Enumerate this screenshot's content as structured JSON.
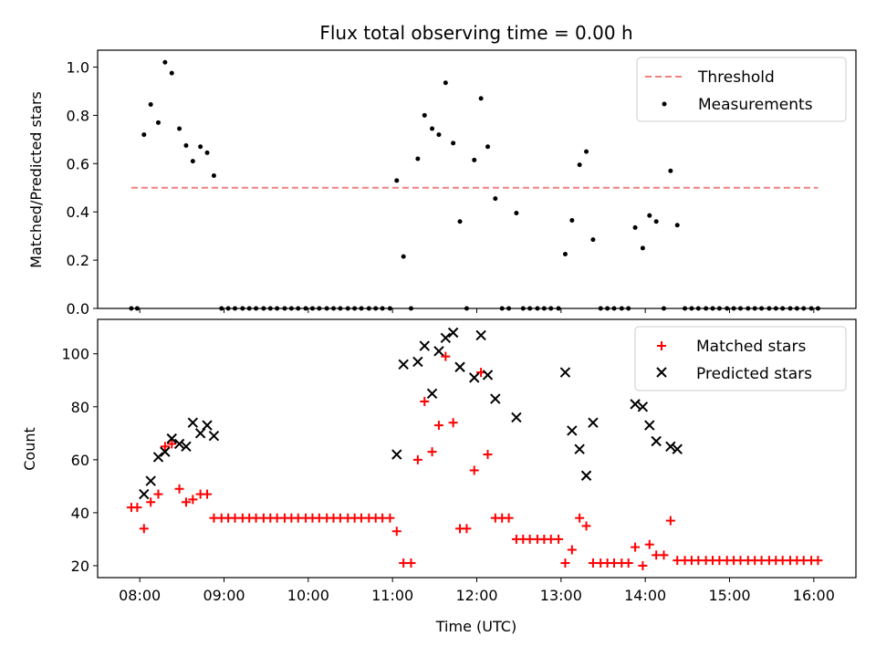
{
  "title": "Flux total observing time = 0.00 h",
  "xlabel": "Time (UTC)",
  "x_ticks": [
    "08:00",
    "09:00",
    "10:00",
    "11:00",
    "12:00",
    "13:00",
    "14:00",
    "15:00",
    "16:00"
  ],
  "colors": {
    "threshold": "#f08080",
    "measurements": "#000000",
    "matched": "#ff0000",
    "predicted": "#000000"
  },
  "chart_data": [
    {
      "type": "scatter",
      "ylabel": "Matched/Predicted stars",
      "ylim": [
        0,
        1.07
      ],
      "xlim_hours": [
        7.5,
        16.5
      ],
      "y_ticks": [
        "0.0",
        "0.2",
        "0.4",
        "0.6",
        "0.8",
        "1.0"
      ],
      "y_tick_values": [
        0,
        0.2,
        0.4,
        0.6,
        0.8,
        1.0
      ],
      "legend": {
        "position": "top-right",
        "entries": [
          "Threshold",
          "Measurements"
        ]
      },
      "threshold": {
        "name": "Threshold",
        "x": [
          7.9,
          16.05
        ],
        "y": [
          0.5,
          0.5
        ]
      },
      "series": [
        {
          "name": "Measurements",
          "x": [
            7.9,
            7.97,
            8.05,
            8.13,
            8.22,
            8.3,
            8.38,
            8.47,
            8.55,
            8.63,
            8.72,
            8.8,
            8.88,
            8.97,
            9.05,
            9.13,
            9.22,
            9.3,
            9.38,
            9.47,
            9.55,
            9.63,
            9.72,
            9.8,
            9.88,
            9.97,
            10.05,
            10.13,
            10.22,
            10.3,
            10.38,
            10.47,
            10.55,
            10.63,
            10.72,
            10.8,
            10.88,
            10.97,
            11.05,
            11.13,
            11.22,
            11.3,
            11.38,
            11.47,
            11.55,
            11.63,
            11.72,
            11.8,
            11.88,
            11.97,
            12.05,
            12.13,
            12.22,
            12.3,
            12.38,
            12.47,
            12.55,
            12.63,
            12.72,
            12.8,
            12.88,
            12.97,
            13.05,
            13.13,
            13.22,
            13.3,
            13.38,
            13.47,
            13.55,
            13.63,
            13.72,
            13.8,
            13.88,
            13.97,
            14.05,
            14.13,
            14.22,
            14.3,
            14.38,
            14.47,
            14.55,
            14.63,
            14.72,
            14.8,
            14.88,
            14.97,
            15.05,
            15.13,
            15.22,
            15.3,
            15.38,
            15.47,
            15.55,
            15.63,
            15.72,
            15.8,
            15.88,
            15.97,
            16.05
          ],
          "y": [
            0.0,
            0.0,
            0.72,
            0.845,
            0.77,
            1.02,
            0.975,
            0.745,
            0.675,
            0.61,
            0.67,
            0.645,
            0.55,
            0.0,
            0.0,
            0.0,
            0.0,
            0.0,
            0.0,
            0.0,
            0.0,
            0.0,
            0.0,
            0.0,
            0.0,
            0.0,
            0.0,
            0.0,
            0.0,
            0.0,
            0.0,
            0.0,
            0.0,
            0.0,
            0.0,
            0.0,
            0.0,
            0.0,
            0.53,
            0.215,
            0.0,
            0.62,
            0.8,
            0.745,
            0.72,
            0.935,
            0.685,
            0.36,
            0.0,
            0.615,
            0.87,
            0.67,
            0.455,
            0.0,
            0.0,
            0.395,
            0.0,
            0.0,
            0.0,
            0.0,
            0.0,
            0.0,
            0.225,
            0.365,
            0.595,
            0.65,
            0.285,
            0.0,
            0.0,
            0.0,
            0.0,
            0.0,
            0.335,
            0.25,
            0.385,
            0.36,
            0.0,
            0.57,
            0.345,
            0.0,
            0.0,
            0.0,
            0.0,
            0.0,
            0.0,
            0.0,
            0.0,
            0.0,
            0.0,
            0.0,
            0.0,
            0.0,
            0.0,
            0.0,
            0.0,
            0.0,
            0.0,
            0.0,
            0.0
          ]
        }
      ]
    },
    {
      "type": "scatter",
      "ylabel": "Count",
      "ylim": [
        15.5,
        113
      ],
      "xlim_hours": [
        7.5,
        16.5
      ],
      "y_ticks": [
        "20",
        "40",
        "60",
        "80",
        "100"
      ],
      "y_tick_values": [
        20,
        40,
        60,
        80,
        100
      ],
      "legend": {
        "position": "top-right",
        "entries": [
          "Matched stars",
          "Predicted stars"
        ]
      },
      "series": [
        {
          "name": "Matched stars",
          "marker": "plus",
          "x": [
            7.9,
            7.97,
            8.05,
            8.13,
            8.22,
            8.3,
            8.38,
            8.47,
            8.55,
            8.63,
            8.72,
            8.8,
            8.88,
            8.97,
            9.05,
            9.13,
            9.22,
            9.3,
            9.38,
            9.47,
            9.55,
            9.63,
            9.72,
            9.8,
            9.88,
            9.97,
            10.05,
            10.13,
            10.22,
            10.3,
            10.38,
            10.47,
            10.55,
            10.63,
            10.72,
            10.8,
            10.88,
            10.97,
            11.05,
            11.13,
            11.22,
            11.3,
            11.38,
            11.47,
            11.55,
            11.63,
            11.72,
            11.8,
            11.88,
            11.97,
            12.05,
            12.13,
            12.22,
            12.3,
            12.38,
            12.47,
            12.55,
            12.63,
            12.72,
            12.8,
            12.88,
            12.97,
            13.05,
            13.13,
            13.22,
            13.3,
            13.38,
            13.47,
            13.55,
            13.63,
            13.72,
            13.8,
            13.88,
            13.97,
            14.05,
            14.13,
            14.22,
            14.3,
            14.38,
            14.47,
            14.55,
            14.63,
            14.72,
            14.8,
            14.88,
            14.97,
            15.05,
            15.13,
            15.22,
            15.3,
            15.38,
            15.47,
            15.55,
            15.63,
            15.72,
            15.8,
            15.88,
            15.97,
            16.05
          ],
          "y": [
            42,
            42,
            34,
            44,
            47,
            65,
            66,
            49,
            44,
            45,
            47,
            47,
            38,
            38,
            38,
            38,
            38,
            38,
            38,
            38,
            38,
            38,
            38,
            38,
            38,
            38,
            38,
            38,
            38,
            38,
            38,
            38,
            38,
            38,
            38,
            38,
            38,
            38,
            33,
            21,
            21,
            60,
            82,
            63,
            73,
            99,
            74,
            34,
            34,
            56,
            93,
            62,
            38,
            38,
            38,
            30,
            30,
            30,
            30,
            30,
            30,
            30,
            21,
            26,
            38,
            35,
            21,
            21,
            21,
            21,
            21,
            21,
            27,
            20,
            28,
            24,
            24,
            37,
            22,
            22,
            22,
            22,
            22,
            22,
            22,
            22,
            22,
            22,
            22,
            22,
            22,
            22,
            22,
            22,
            22,
            22,
            22,
            22,
            22
          ]
        },
        {
          "name": "Predicted stars",
          "marker": "x",
          "x": [
            8.05,
            8.13,
            8.22,
            8.3,
            8.38,
            8.47,
            8.55,
            8.63,
            8.72,
            8.8,
            8.88,
            11.05,
            11.13,
            11.3,
            11.38,
            11.47,
            11.55,
            11.63,
            11.72,
            11.8,
            11.97,
            12.05,
            12.13,
            12.22,
            12.47,
            13.05,
            13.13,
            13.22,
            13.3,
            13.38,
            13.88,
            13.97,
            14.05,
            14.13,
            14.3,
            14.38
          ],
          "y": [
            47,
            52,
            61,
            63,
            68,
            66,
            65,
            74,
            70,
            73,
            69,
            62,
            96,
            97,
            103,
            85,
            101,
            106,
            108,
            95,
            91,
            107,
            92,
            83,
            76,
            93,
            71,
            64,
            54,
            74,
            81,
            80,
            73,
            67,
            65,
            64
          ]
        }
      ]
    }
  ]
}
